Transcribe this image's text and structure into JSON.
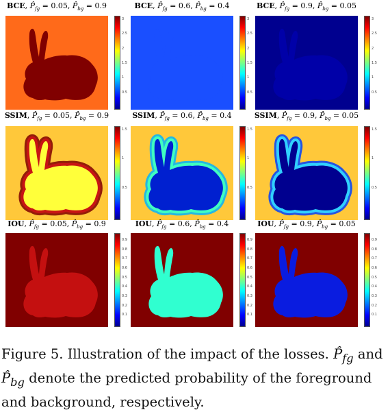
{
  "figure": {
    "rows": [
      {
        "loss": "BCE",
        "panels": [
          {
            "loss": "BCE",
            "pfg": "0.05",
            "pbg": "0.9",
            "bg_color": "#ff6a1a",
            "fg_color": "#800000",
            "edge_color": null,
            "edge2_color": null,
            "ticks": [
              "3",
              "2.5",
              "2",
              "1.5",
              "1",
              "0.5"
            ]
          },
          {
            "loss": "BCE",
            "pfg": "0.6",
            "pbg": "0.4",
            "bg_color": "#1a4fff",
            "fg_color": "#1a4fff",
            "edge_color": null,
            "edge2_color": null,
            "ticks": [
              "3",
              "2.5",
              "2",
              "1.5",
              "1",
              "0.5"
            ]
          },
          {
            "loss": "BCE",
            "pfg": "0.9",
            "pbg": "0.05",
            "bg_color": "#00008f",
            "fg_color": "#0000a8",
            "edge_color": null,
            "edge2_color": null,
            "ticks": [
              "3",
              "2.5",
              "2",
              "1.5",
              "1",
              "0.5"
            ]
          }
        ]
      },
      {
        "loss": "SSIM",
        "panels": [
          {
            "loss": "SSIM",
            "pfg": "0.05",
            "pbg": "0.9",
            "bg_color": "#ffc83a",
            "fg_color": "#ffff3a",
            "edge_color": "#c81414",
            "edge2_color": "#800000",
            "ticks": [
              "1.5",
              "1",
              "0.5"
            ]
          },
          {
            "loss": "SSIM",
            "pfg": "0.6",
            "pbg": "0.4",
            "bg_color": "#ffc83a",
            "fg_color": "#0020d0",
            "edge_color": "#40ffc0",
            "edge2_color": "#00b4ff",
            "ticks": [
              "1.5",
              "1",
              "0.5"
            ]
          },
          {
            "loss": "SSIM",
            "pfg": "0.9",
            "pbg": "0.05",
            "bg_color": "#ffc83a",
            "fg_color": "#00008f",
            "edge_color": "#30d0ff",
            "edge2_color": "#0040ff",
            "ticks": [
              "1.5",
              "1",
              "0.5"
            ]
          }
        ]
      },
      {
        "loss": "IOU",
        "panels": [
          {
            "loss": "IOU",
            "pfg": "0.05",
            "pbg": "0.9",
            "bg_color": "#800000",
            "fg_color": "#c41010",
            "edge_color": null,
            "edge2_color": null,
            "ticks": [
              "0.9",
              "0.8",
              "0.7",
              "0.6",
              "0.5",
              "0.4",
              "0.3",
              "0.2",
              "0.1"
            ]
          },
          {
            "loss": "IOU",
            "pfg": "0.6",
            "pbg": "0.4",
            "bg_color": "#800000",
            "fg_color": "#30ffd0",
            "edge_color": null,
            "edge2_color": null,
            "ticks": [
              "0.9",
              "0.8",
              "0.7",
              "0.6",
              "0.5",
              "0.4",
              "0.3",
              "0.2",
              "0.1"
            ]
          },
          {
            "loss": "IOU",
            "pfg": "0.9",
            "pbg": "0.05",
            "bg_color": "#800000",
            "fg_color": "#0a1ce0",
            "edge_color": null,
            "edge2_color": null,
            "ticks": [
              "0.9",
              "0.8",
              "0.7",
              "0.6",
              "0.5",
              "0.4",
              "0.3",
              "0.2",
              "0.1"
            ]
          }
        ]
      }
    ]
  },
  "caption": {
    "prefix": "Figure 5. Illustration of the impact of the losses.",
    "sym1": "P̂",
    "sub1": "fg",
    "mid": "and",
    "sym2": "P̂",
    "sub2": "bg",
    "suffix": "denote the predicted probability of the foreground and background, respectively."
  }
}
